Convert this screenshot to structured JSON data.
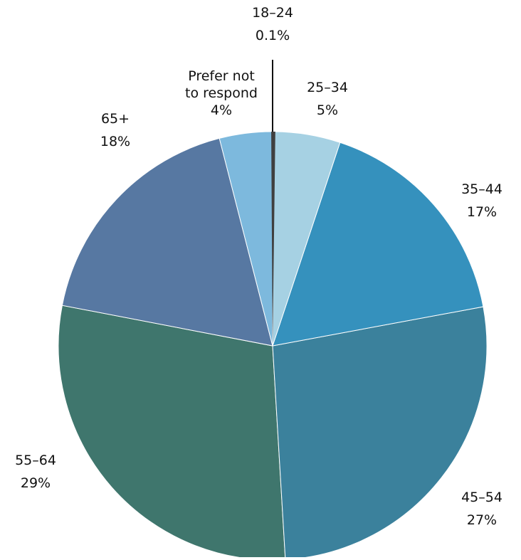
{
  "chart_data": {
    "type": "pie",
    "start_angle_deg": 0,
    "direction": "clockwise",
    "slices": [
      {
        "label": "18–24",
        "value": 0.1,
        "value_label": "0.1%",
        "color": "#3f3f3f"
      },
      {
        "label": "25–34",
        "value": 5,
        "value_label": "5%",
        "color": "#a6d1e3"
      },
      {
        "label": "35–44",
        "value": 17,
        "value_label": "17%",
        "color": "#3591bd"
      },
      {
        "label": "45–54",
        "value": 27,
        "value_label": "27%",
        "color": "#3b819c"
      },
      {
        "label": "55–64",
        "value": 29,
        "value_label": "29%",
        "color": "#3f766d"
      },
      {
        "label": "65+",
        "value": 18,
        "value_label": "18%",
        "color": "#5778a2"
      },
      {
        "label": "Prefer not to respond",
        "value": 4,
        "value_label": "4%",
        "color": "#7db9dd"
      }
    ],
    "leader_line_slice": "18–24"
  }
}
